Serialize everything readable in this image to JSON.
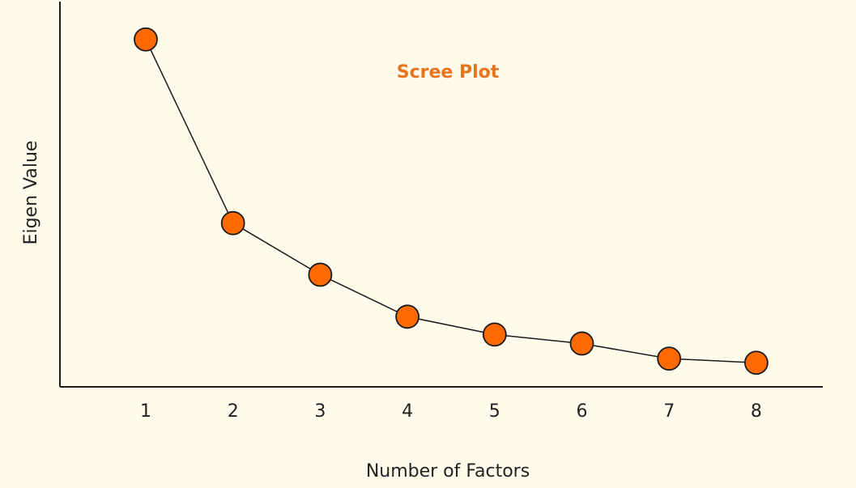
{
  "chart_data": {
    "type": "line",
    "title": "Scree Plot",
    "xlabel": "Number of Factors",
    "ylabel": "Eigen Value",
    "x": [
      1,
      2,
      3,
      4,
      5,
      6,
      7,
      8
    ],
    "categories": [
      "1",
      "2",
      "3",
      "4",
      "5",
      "6",
      "7",
      "8"
    ],
    "series": [
      {
        "values": [
          5.05,
          2.38,
          1.63,
          1.02,
          0.76,
          0.63,
          0.41,
          0.35
        ]
      }
    ],
    "ylim": [
      0,
      5.6
    ],
    "show_y_ticks": false,
    "grid": false,
    "legend": "none"
  },
  "colors": {
    "background": "#FFFBEB",
    "title": "#E8741E",
    "marker_fill": "#FF6A00",
    "marker_stroke": "#1A1A1A",
    "line": "#1A1A1A",
    "axis": "#1A1A1A"
  }
}
